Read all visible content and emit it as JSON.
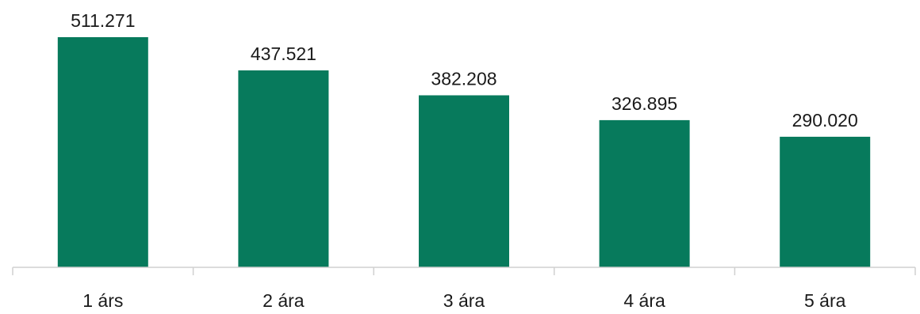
{
  "chart_data": {
    "type": "bar",
    "categories": [
      "1 árs",
      "2 ára",
      "3 ára",
      "4 ára",
      "5 ára"
    ],
    "values": [
      511271,
      437521,
      382208,
      326895,
      290020
    ],
    "value_labels": [
      "511.271",
      "437.521",
      "382.208",
      "326.895",
      "290.020"
    ],
    "title": "",
    "xlabel": "",
    "ylabel": "",
    "ylim": [
      0,
      511271
    ],
    "grid": false,
    "legend": "none",
    "colors": {
      "bar": "#077A5C",
      "axis": "#d0d0d0",
      "text": "#1a1a1a"
    }
  }
}
